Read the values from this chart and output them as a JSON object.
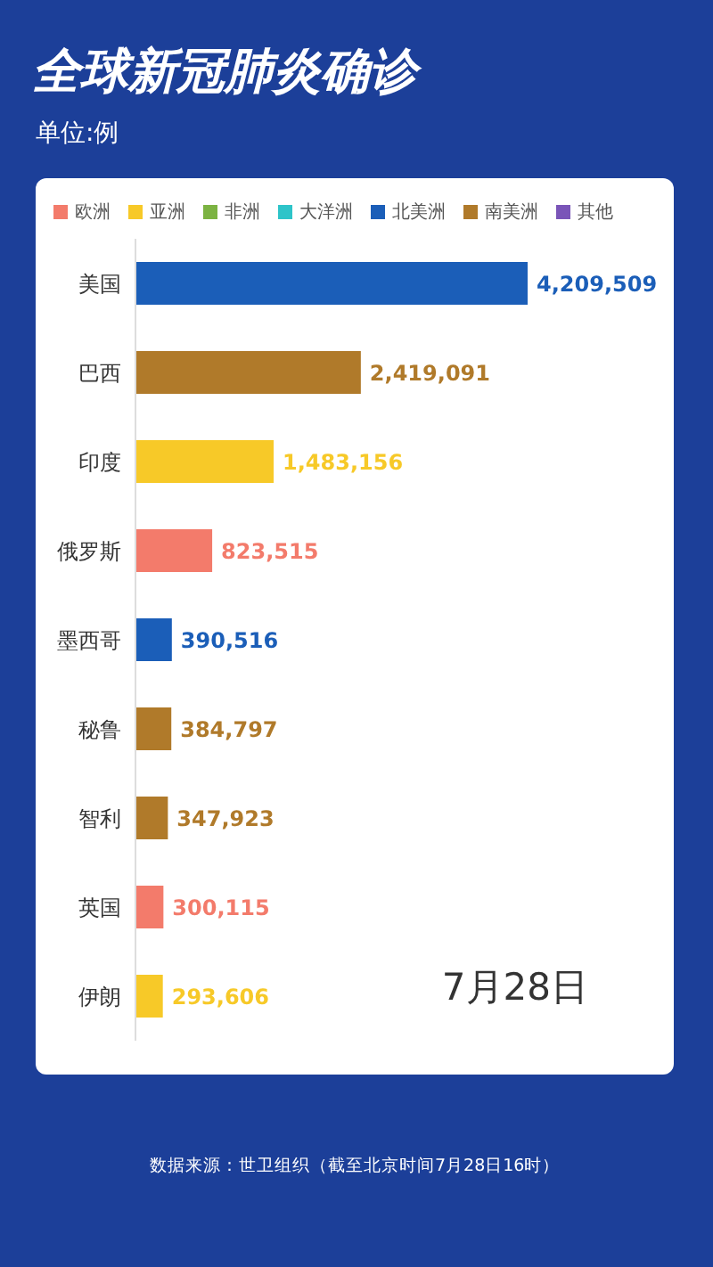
{
  "chart_data": {
    "type": "bar",
    "orientation": "horizontal",
    "stacked": true,
    "title": "全球新冠肺炎确诊",
    "subtitle": "单位:例",
    "categories": [
      "美国",
      "巴西",
      "印度",
      "俄罗斯",
      "墨西哥",
      "秘鲁",
      "智利",
      "英国",
      "伊朗"
    ],
    "series": [
      {
        "name": "欧洲",
        "color": "#f37b6b",
        "values": [
          null,
          null,
          null,
          823515,
          null,
          null,
          null,
          300115,
          null
        ],
        "value_labels": [
          null,
          null,
          null,
          "823,515",
          null,
          null,
          null,
          "300,115",
          null
        ]
      },
      {
        "name": "亚洲",
        "color": "#f7c928",
        "values": [
          null,
          null,
          1483156,
          null,
          null,
          null,
          null,
          null,
          293606
        ],
        "value_labels": [
          null,
          null,
          "1,483,156",
          null,
          null,
          null,
          null,
          null,
          "293,606"
        ]
      },
      {
        "name": "非洲",
        "color": "#7cb342",
        "values": [
          null,
          null,
          null,
          null,
          null,
          null,
          null,
          null,
          null
        ]
      },
      {
        "name": "大洋洲",
        "color": "#2ec4c9",
        "values": [
          null,
          null,
          null,
          null,
          null,
          null,
          null,
          null,
          null
        ]
      },
      {
        "name": "北美洲",
        "color": "#1b5eb8",
        "values": [
          4209509,
          null,
          null,
          null,
          390516,
          null,
          null,
          null,
          null
        ],
        "value_labels": [
          "4,209,509",
          null,
          null,
          null,
          "390,516",
          null,
          null,
          null,
          null
        ]
      },
      {
        "name": "南美洲",
        "color": "#b07a2a",
        "values": [
          null,
          2419091,
          null,
          null,
          null,
          384797,
          347923,
          null,
          null
        ],
        "value_labels": [
          null,
          "2,419,091",
          null,
          null,
          null,
          "384,797",
          "347,923",
          null,
          null
        ]
      },
      {
        "name": "其他",
        "color": "#7a55b8",
        "values": [
          null,
          null,
          null,
          null,
          null,
          null,
          null,
          null,
          null
        ]
      }
    ],
    "tick_labels": "y",
    "legend": "top",
    "annotations": [
      "7月28日",
      "数据来源：世卫组织（截至北京时间7月28日16时）"
    ]
  }
}
